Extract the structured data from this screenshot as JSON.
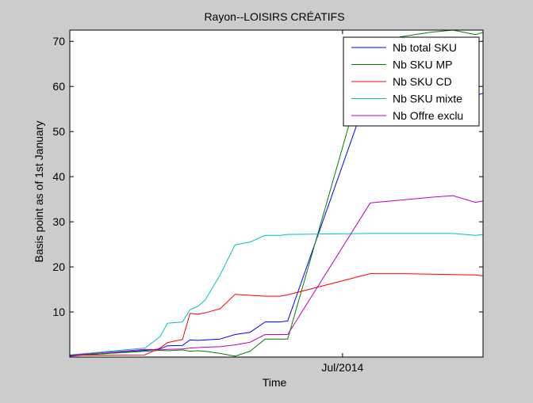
{
  "chart_data": {
    "type": "line",
    "title": "Rayon--LOISIRS CRÉATIFS",
    "xlabel": "Time",
    "ylabel": "Basis point as of 1st January",
    "x": [
      0,
      10,
      12,
      13,
      15,
      16,
      17,
      18,
      20,
      22,
      24,
      26,
      28,
      29,
      40,
      44,
      48,
      51,
      54,
      55
    ],
    "x_axis": {
      "min": 0,
      "max": 55,
      "ticks": [
        {
          "x": 36.3,
          "label": "Jul/2014"
        }
      ]
    },
    "ylim": [
      0,
      72.5
    ],
    "y_ticks": [
      10,
      20,
      30,
      40,
      50,
      60,
      70
    ],
    "grid": false,
    "legend_position": "top-right",
    "series": [
      {
        "name": "Nb total SKU",
        "color": "#0000ff",
        "values": [
          0.2,
          1.5,
          1.8,
          2.5,
          2.6,
          3.8,
          3.7,
          3.8,
          4.0,
          5.0,
          5.5,
          7.8,
          7.8,
          8.0,
          60.0,
          63.0,
          63.0,
          60.0,
          58.0,
          58.5
        ]
      },
      {
        "name": "Nb SKU MP",
        "color": "#007f00",
        "values": [
          0.3,
          1.3,
          1.5,
          1.4,
          1.6,
          1.3,
          1.4,
          1.3,
          0.8,
          0.2,
          1.3,
          4.0,
          4.0,
          4.0,
          68.0,
          71.0,
          72.0,
          72.5,
          71.5,
          72.0
        ]
      },
      {
        "name": "Nb SKU CD",
        "color": "#ff0000",
        "values": [
          0.4,
          0.5,
          2.0,
          3.2,
          3.9,
          9.7,
          9.5,
          9.8,
          10.7,
          13.9,
          13.7,
          13.5,
          13.5,
          13.8,
          18.5,
          18.5,
          18.4,
          18.3,
          18.2,
          18.0
        ]
      },
      {
        "name": "Nb SKU mixte",
        "color": "#00bfbf",
        "values": [
          0.5,
          2.0,
          4.5,
          7.5,
          7.8,
          10.5,
          11.2,
          12.6,
          18.2,
          24.9,
          25.5,
          27.0,
          27.0,
          27.2,
          27.4,
          27.4,
          27.4,
          27.4,
          27.0,
          27.2
        ]
      },
      {
        "name": "Nb Offre exclu",
        "color": "#bf00bf",
        "values": [
          0.4,
          1.7,
          1.6,
          1.7,
          1.8,
          2.0,
          2.1,
          2.2,
          2.3,
          2.7,
          3.3,
          5.0,
          5.0,
          5.0,
          34.2,
          34.8,
          35.4,
          35.8,
          34.3,
          34.6
        ]
      }
    ]
  }
}
